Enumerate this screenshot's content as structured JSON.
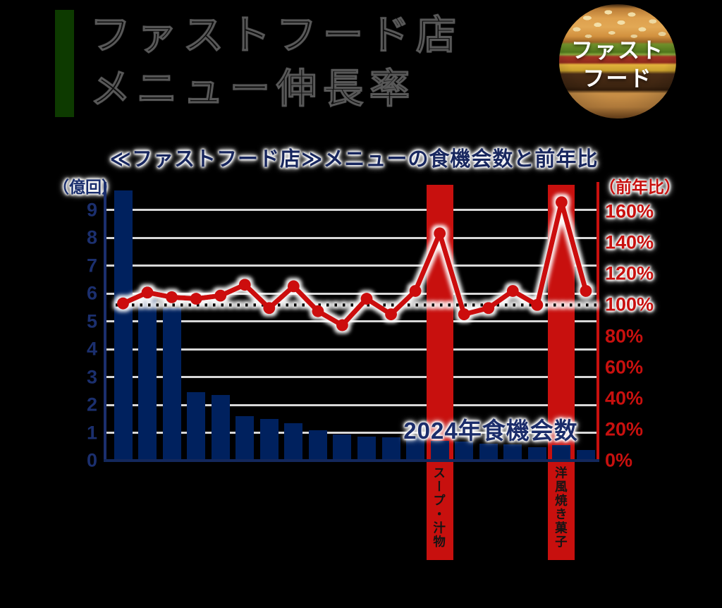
{
  "page": {
    "title_lines": [
      "ファストフード店",
      "メニュー伸長率"
    ],
    "badge_lines": [
      "ファスト",
      "フード"
    ]
  },
  "colors": {
    "bar_navy": "#00215e",
    "highlight_red": "#c8100e",
    "line_red": "#cc1010",
    "grid_gray": "#d8d8d8",
    "navy_text": "#1b2f6e",
    "red_text": "#c8100e",
    "green_accent": "#0d3a00",
    "reference_dotted": "#000000"
  },
  "chart_data": {
    "type": "bar+line",
    "title": "≪ファストフード店≫メニューの食機会数と前年比",
    "categories": [
      "",
      "",
      "",
      "",
      "",
      "",
      "",
      "",
      "",
      "",
      "",
      "",
      "",
      "スープ・汁物",
      "",
      "",
      "",
      "",
      "洋風焼き菓子",
      ""
    ],
    "bar_series": {
      "name": "2024年食機会数",
      "unit": "億回",
      "values": [
        9.7,
        5.8,
        5.5,
        2.45,
        2.35,
        1.6,
        1.5,
        1.35,
        1.1,
        0.95,
        0.85,
        0.84,
        0.83,
        0.72,
        0.68,
        0.6,
        0.58,
        0.48,
        0.55,
        0.38
      ]
    },
    "line_series": {
      "name": "前年比",
      "unit": "%",
      "values": [
        101,
        108,
        105,
        104,
        106,
        113,
        98,
        112,
        96,
        87,
        104,
        94,
        109,
        146,
        94,
        98,
        109,
        100,
        166,
        109
      ]
    },
    "left_axis": {
      "label": "（億回）",
      "min": 0,
      "max": 9,
      "ticks": [
        "9",
        "8",
        "7",
        "6",
        "5",
        "4",
        "3",
        "2",
        "1",
        "0"
      ]
    },
    "right_axis": {
      "label": "（前年比）",
      "min_pct": 0,
      "max_pct": 160,
      "ticks": [
        "160%",
        "140%",
        "120%",
        "100%",
        "80%",
        "60%",
        "40%",
        "20%",
        "0%"
      ]
    },
    "reference_line_pct": 100,
    "highlighted": [
      {
        "index": 13,
        "label": "スープ・汁物"
      },
      {
        "index": 18,
        "label": "洋風焼き菓子"
      }
    ],
    "annotation": "2024年食機会数",
    "grid": true,
    "legend": "none"
  }
}
